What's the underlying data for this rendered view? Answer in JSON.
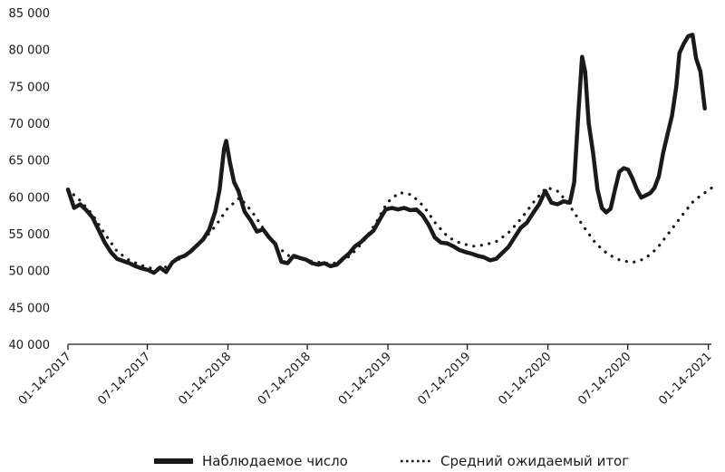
{
  "chart_data": {
    "type": "line",
    "title": "",
    "xlabel": "",
    "ylabel": "",
    "ylim": [
      40000,
      85000
    ],
    "y_ticks": [
      {
        "value": 40000,
        "label": "40 000"
      },
      {
        "value": 45000,
        "label": "45 000"
      },
      {
        "value": 50000,
        "label": "50 000"
      },
      {
        "value": 55000,
        "label": "55 000"
      },
      {
        "value": 60000,
        "label": "60 000"
      },
      {
        "value": 65000,
        "label": "65 000"
      },
      {
        "value": 70000,
        "label": "70 000"
      },
      {
        "value": 75000,
        "label": "75 000"
      },
      {
        "value": 80000,
        "label": "80 000"
      },
      {
        "value": 85000,
        "label": "85 000"
      }
    ],
    "xlim": [
      "2017-01-14",
      "2021-01-21"
    ],
    "x_ticks": [
      {
        "date": "2017-01-14",
        "label": "01-14-2017"
      },
      {
        "date": "2017-07-14",
        "label": "07-14-2017"
      },
      {
        "date": "2018-01-14",
        "label": "01-14-2018"
      },
      {
        "date": "2018-07-14",
        "label": "07-14-2018"
      },
      {
        "date": "2019-01-14",
        "label": "01-14-2019"
      },
      {
        "date": "2019-07-14",
        "label": "07-14-2019"
      },
      {
        "date": "2020-01-14",
        "label": "01-14-2020"
      },
      {
        "date": "2020-07-14",
        "label": "07-14-2020"
      },
      {
        "date": "2021-01-14",
        "label": "01-14-2021"
      }
    ],
    "grid": false,
    "legend_position": "bottom",
    "series": [
      {
        "name": "Наблюдаемое число",
        "style": "solid",
        "color": "#1a1a1a",
        "points": [
          [
            "2017-01-14",
            61000
          ],
          [
            "2017-01-28",
            58500
          ],
          [
            "2017-02-11",
            59000
          ],
          [
            "2017-02-25",
            58200
          ],
          [
            "2017-03-11",
            57200
          ],
          [
            "2017-03-25",
            55500
          ],
          [
            "2017-04-08",
            53800
          ],
          [
            "2017-04-22",
            52500
          ],
          [
            "2017-05-06",
            51600
          ],
          [
            "2017-05-20",
            51300
          ],
          [
            "2017-06-03",
            51000
          ],
          [
            "2017-06-17",
            50600
          ],
          [
            "2017-07-01",
            50300
          ],
          [
            "2017-07-15",
            50100
          ],
          [
            "2017-07-29",
            49700
          ],
          [
            "2017-08-12",
            50400
          ],
          [
            "2017-08-26",
            49800
          ],
          [
            "2017-09-09",
            51100
          ],
          [
            "2017-09-23",
            51700
          ],
          [
            "2017-10-07",
            52000
          ],
          [
            "2017-10-21",
            52600
          ],
          [
            "2017-11-04",
            53400
          ],
          [
            "2017-11-18",
            54200
          ],
          [
            "2017-12-02",
            55500
          ],
          [
            "2017-12-16",
            58000
          ],
          [
            "2017-12-26",
            61000
          ],
          [
            "2018-01-05",
            66500
          ],
          [
            "2018-01-10",
            67600
          ],
          [
            "2018-01-18",
            64800
          ],
          [
            "2018-01-28",
            62000
          ],
          [
            "2018-02-07",
            60800
          ],
          [
            "2018-02-21",
            58000
          ],
          [
            "2018-03-07",
            56800
          ],
          [
            "2018-03-21",
            55300
          ],
          [
            "2018-04-04",
            55600
          ],
          [
            "2018-04-18",
            54500
          ],
          [
            "2018-05-02",
            53600
          ],
          [
            "2018-05-16",
            51200
          ],
          [
            "2018-05-30",
            51000
          ],
          [
            "2018-06-13",
            52000
          ],
          [
            "2018-06-27",
            51700
          ],
          [
            "2018-07-11",
            51500
          ],
          [
            "2018-07-25",
            51000
          ],
          [
            "2018-08-08",
            50800
          ],
          [
            "2018-08-22",
            51000
          ],
          [
            "2018-09-05",
            50600
          ],
          [
            "2018-09-19",
            50800
          ],
          [
            "2018-10-03",
            51600
          ],
          [
            "2018-10-17",
            52300
          ],
          [
            "2018-10-31",
            53300
          ],
          [
            "2018-11-14",
            53900
          ],
          [
            "2018-11-28",
            54700
          ],
          [
            "2018-12-12",
            55400
          ],
          [
            "2018-12-26",
            56900
          ],
          [
            "2019-01-09",
            58300
          ],
          [
            "2019-01-23",
            58500
          ],
          [
            "2019-02-06",
            58300
          ],
          [
            "2019-02-20",
            58500
          ],
          [
            "2019-03-06",
            58200
          ],
          [
            "2019-03-20",
            58300
          ],
          [
            "2019-04-03",
            57500
          ],
          [
            "2019-04-17",
            56200
          ],
          [
            "2019-05-01",
            54500
          ],
          [
            "2019-05-15",
            53800
          ],
          [
            "2019-05-29",
            53700
          ],
          [
            "2019-06-12",
            53300
          ],
          [
            "2019-06-26",
            52800
          ],
          [
            "2019-07-10",
            52500
          ],
          [
            "2019-07-24",
            52300
          ],
          [
            "2019-08-07",
            52000
          ],
          [
            "2019-08-21",
            51800
          ],
          [
            "2019-09-04",
            51400
          ],
          [
            "2019-09-18",
            51600
          ],
          [
            "2019-10-02",
            52400
          ],
          [
            "2019-10-16",
            53200
          ],
          [
            "2019-10-30",
            54500
          ],
          [
            "2019-11-13",
            55800
          ],
          [
            "2019-11-27",
            56500
          ],
          [
            "2019-12-11",
            57800
          ],
          [
            "2019-12-25",
            59000
          ],
          [
            "2020-01-08",
            60800
          ],
          [
            "2020-01-22",
            59200
          ],
          [
            "2020-02-05",
            59000
          ],
          [
            "2020-02-19",
            59400
          ],
          [
            "2020-03-04",
            59200
          ],
          [
            "2020-03-14",
            62000
          ],
          [
            "2020-03-24",
            72000
          ],
          [
            "2020-04-01",
            79000
          ],
          [
            "2020-04-08",
            77000
          ],
          [
            "2020-04-16",
            70000
          ],
          [
            "2020-04-26",
            66000
          ],
          [
            "2020-05-06",
            61000
          ],
          [
            "2020-05-16",
            58500
          ],
          [
            "2020-05-26",
            57900
          ],
          [
            "2020-06-05",
            58400
          ],
          [
            "2020-06-15",
            61000
          ],
          [
            "2020-06-25",
            63400
          ],
          [
            "2020-07-05",
            63900
          ],
          [
            "2020-07-15",
            63700
          ],
          [
            "2020-07-25",
            62500
          ],
          [
            "2020-08-04",
            61000
          ],
          [
            "2020-08-14",
            59900
          ],
          [
            "2020-08-24",
            60200
          ],
          [
            "2020-09-03",
            60500
          ],
          [
            "2020-09-13",
            61200
          ],
          [
            "2020-09-23",
            62800
          ],
          [
            "2020-10-03",
            66000
          ],
          [
            "2020-10-13",
            68500
          ],
          [
            "2020-10-23",
            71000
          ],
          [
            "2020-11-02",
            75000
          ],
          [
            "2020-11-09",
            79500
          ],
          [
            "2020-11-19",
            80800
          ],
          [
            "2020-11-29",
            81800
          ],
          [
            "2020-12-09",
            82000
          ],
          [
            "2020-12-17",
            78800
          ],
          [
            "2020-12-27",
            77000
          ],
          [
            "2021-01-06",
            72000
          ]
        ]
      },
      {
        "name": "Средний ожидаемый итог",
        "style": "dotted",
        "color": "#1a1a1a",
        "points": [
          [
            "2017-01-14",
            61000
          ],
          [
            "2017-02-11",
            59500
          ],
          [
            "2017-03-11",
            57600
          ],
          [
            "2017-04-08",
            55000
          ],
          [
            "2017-05-06",
            52600
          ],
          [
            "2017-06-03",
            51400
          ],
          [
            "2017-07-01",
            50700
          ],
          [
            "2017-07-29",
            50200
          ],
          [
            "2017-08-26",
            50500
          ],
          [
            "2017-09-23",
            51500
          ],
          [
            "2017-10-21",
            52500
          ],
          [
            "2017-11-18",
            54100
          ],
          [
            "2017-12-16",
            56000
          ],
          [
            "2018-01-13",
            58400
          ],
          [
            "2018-02-10",
            59900
          ],
          [
            "2018-03-10",
            58000
          ],
          [
            "2018-04-07",
            55500
          ],
          [
            "2018-05-05",
            53300
          ],
          [
            "2018-06-02",
            52000
          ],
          [
            "2018-06-30",
            51600
          ],
          [
            "2018-07-28",
            51200
          ],
          [
            "2018-08-25",
            51000
          ],
          [
            "2018-09-22",
            51000
          ],
          [
            "2018-10-20",
            52000
          ],
          [
            "2018-11-17",
            53800
          ],
          [
            "2018-12-15",
            56200
          ],
          [
            "2019-01-12",
            59200
          ],
          [
            "2019-02-09",
            60600
          ],
          [
            "2019-03-09",
            60300
          ],
          [
            "2019-04-06",
            58700
          ],
          [
            "2019-05-04",
            56300
          ],
          [
            "2019-06-01",
            54500
          ],
          [
            "2019-06-29",
            53700
          ],
          [
            "2019-07-27",
            53300
          ],
          [
            "2019-08-24",
            53500
          ],
          [
            "2019-09-21",
            54000
          ],
          [
            "2019-10-19",
            55300
          ],
          [
            "2019-11-16",
            57200
          ],
          [
            "2019-12-14",
            59400
          ],
          [
            "2020-01-11",
            61300
          ],
          [
            "2020-02-08",
            60700
          ],
          [
            "2020-03-07",
            58500
          ],
          [
            "2020-04-04",
            56000
          ],
          [
            "2020-05-02",
            53700
          ],
          [
            "2020-05-30",
            52200
          ],
          [
            "2020-06-27",
            51400
          ],
          [
            "2020-07-25",
            51100
          ],
          [
            "2020-08-22",
            51600
          ],
          [
            "2020-09-19",
            53000
          ],
          [
            "2020-10-17",
            55200
          ],
          [
            "2020-11-14",
            57400
          ],
          [
            "2020-12-12",
            59500
          ],
          [
            "2021-01-21",
            61200
          ]
        ]
      }
    ]
  }
}
